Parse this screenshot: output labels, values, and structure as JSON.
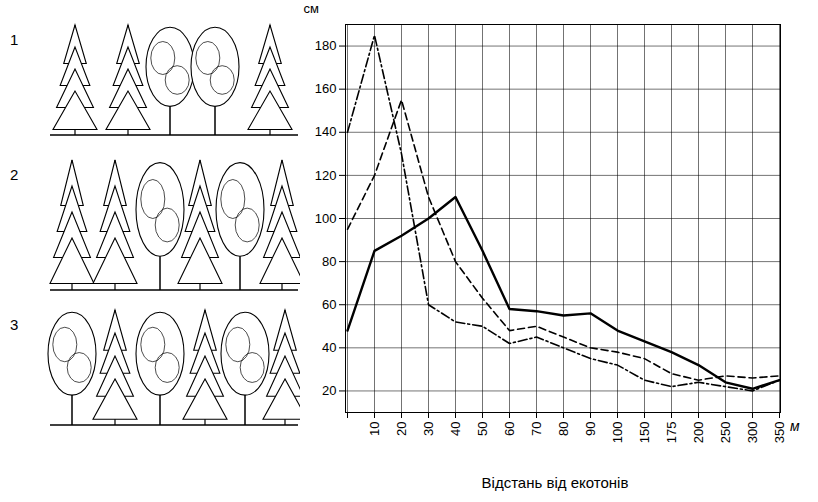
{
  "chart_data": {
    "type": "line",
    "xlabel": "Відстань від екотонів",
    "ylabel": "см",
    "xunit": "м",
    "panel_labels": [
      "1",
      "2",
      "3"
    ],
    "categories": [
      null,
      10,
      20,
      30,
      40,
      50,
      60,
      70,
      80,
      90,
      100,
      150,
      175,
      200,
      250,
      300,
      350
    ],
    "series": [
      {
        "color": "#000000",
        "line_style": "solid",
        "values": [
          48,
          85,
          92,
          100,
          110,
          85,
          58,
          57,
          55,
          56,
          48,
          43,
          38,
          32,
          24,
          21,
          25
        ]
      },
      {
        "color": "#000000",
        "line_style": "dashed",
        "values": [
          95,
          120,
          155,
          110,
          80,
          63,
          48,
          50,
          45,
          40,
          38,
          35,
          28,
          25,
          27,
          26,
          27
        ]
      },
      {
        "color": "#000000",
        "line_style": "dashdot",
        "values": [
          140,
          185,
          130,
          60,
          52,
          50,
          42,
          45,
          40,
          35,
          32,
          25,
          22,
          24,
          22,
          20,
          25
        ]
      }
    ],
    "ylim": [
      10,
      190
    ],
    "yticks": [
      20,
      40,
      60,
      80,
      100,
      120,
      140,
      160,
      180
    ],
    "grid": true
  }
}
